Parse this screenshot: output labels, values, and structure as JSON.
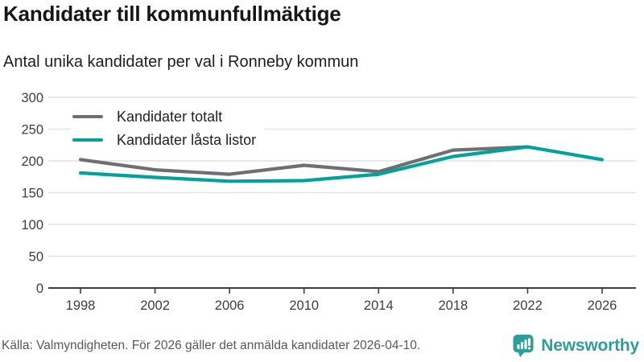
{
  "header": {
    "title": "Kandidater till kommunfullmäktige",
    "subtitle": "Antal unika kandidater per val i Ronneby kommun"
  },
  "chart_data": {
    "type": "line",
    "title": "Kandidater till kommunfullmäktige",
    "subtitle": "Antal unika kandidater per val i Ronneby kommun",
    "categories": [
      "1998",
      "2002",
      "2006",
      "2010",
      "2014",
      "2018",
      "2022",
      "2026"
    ],
    "series": [
      {
        "name": "Kandidater totalt",
        "color": "#6e6e73",
        "values": [
          202,
          186,
          179,
          193,
          183,
          217,
          222,
          null
        ]
      },
      {
        "name": "Kandidater låsta listor",
        "color": "#00a29a",
        "values": [
          181,
          174,
          168,
          169,
          179,
          207,
          222,
          202
        ]
      }
    ],
    "xlabel": "",
    "ylabel": "",
    "ylim": [
      0,
      300
    ],
    "yticks": [
      0,
      50,
      100,
      150,
      200,
      250,
      300
    ],
    "grid": true,
    "legend_position": "top-left"
  },
  "footer": {
    "source": "Källa: Valmyndigheten. För 2026 gäller det anmälda kandidater 2026-04-10.",
    "brand": "Newsworthy"
  },
  "colors": {
    "line_gray": "#6e6e73",
    "accent_teal": "#00a29a",
    "brand_teal": "#2f9e98",
    "grid_line": "#e2e2e2",
    "axis_line": "#3f3f3f",
    "tick_text": "#3d3d3d"
  }
}
